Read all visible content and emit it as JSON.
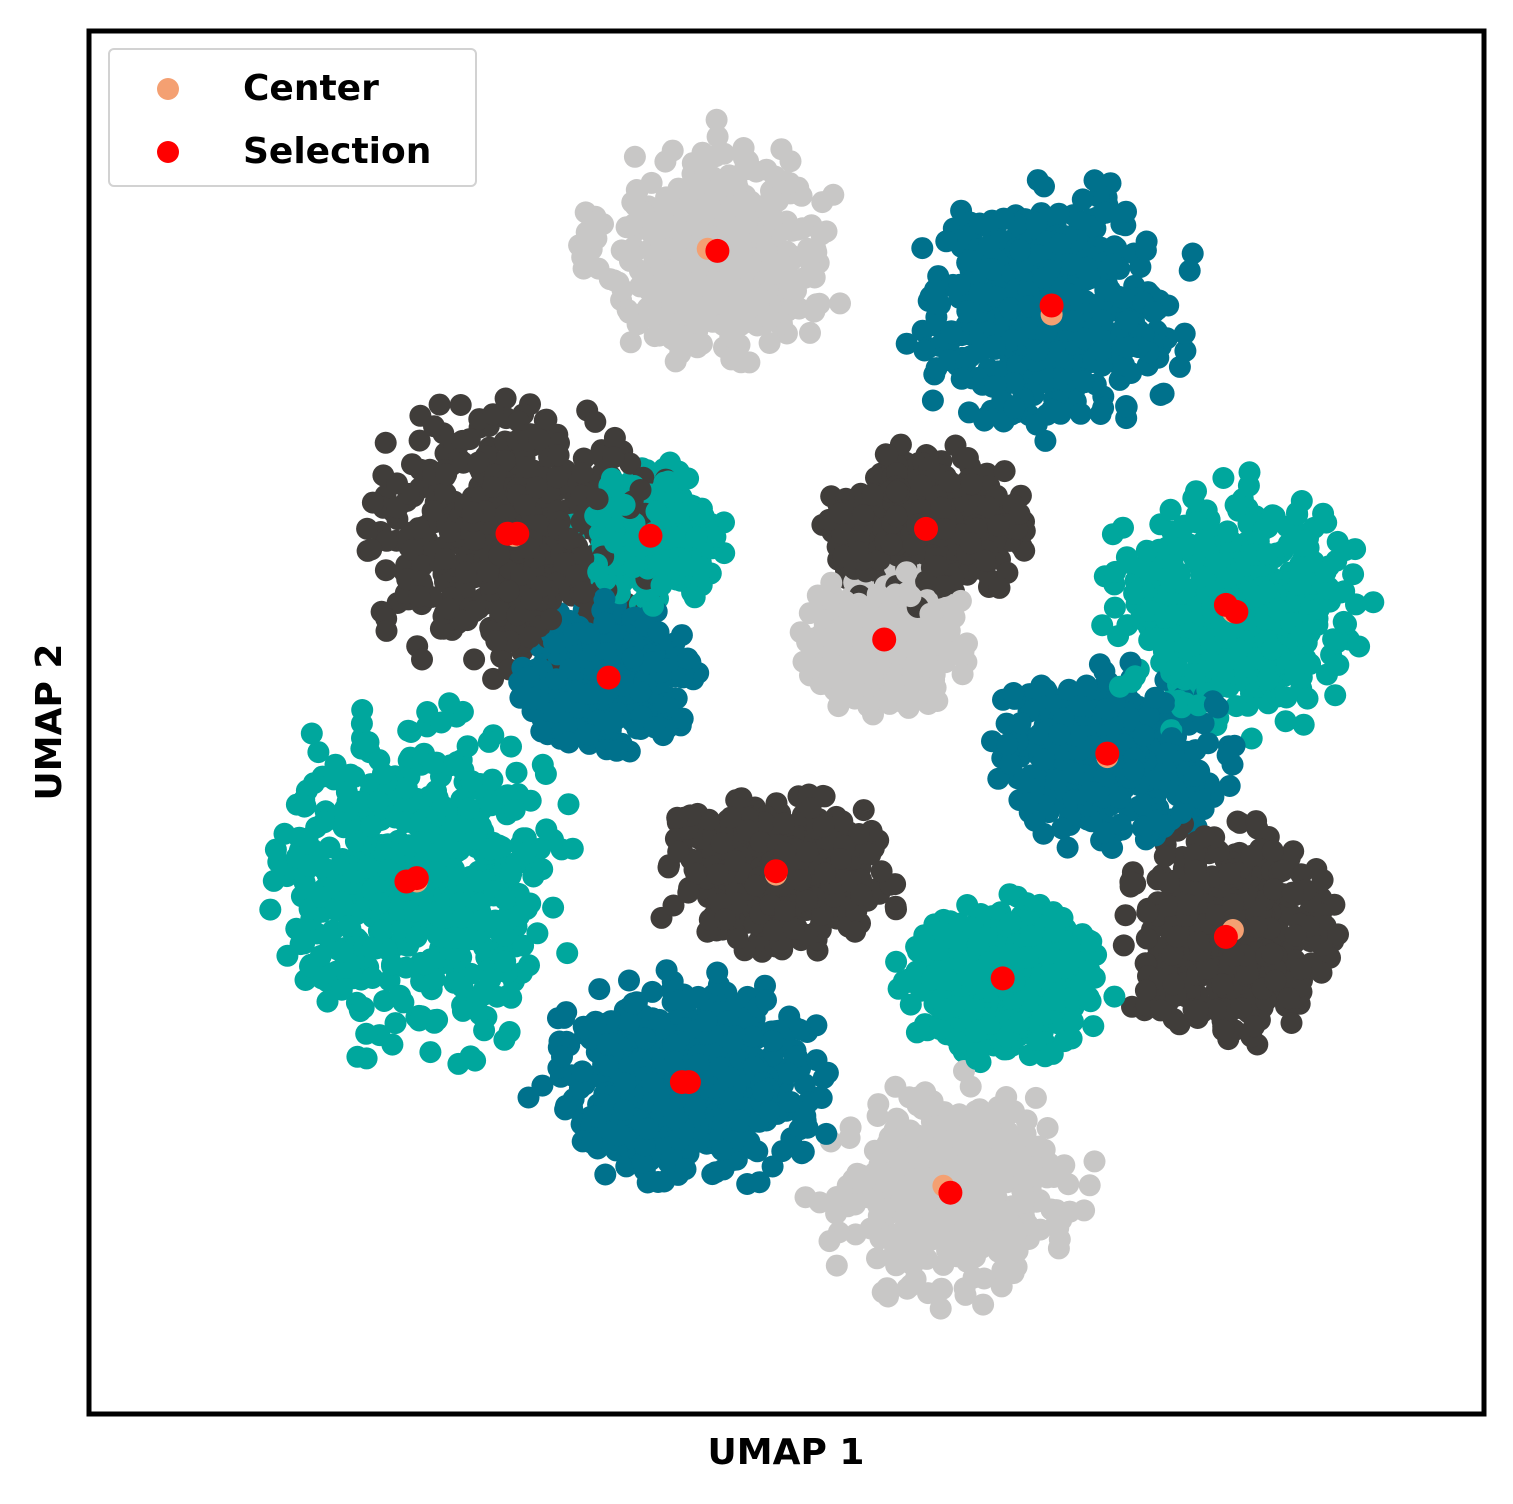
{
  "chart_data": {
    "type": "scatter",
    "title": "",
    "xlabel": "UMAP 1",
    "ylabel": "UMAP 2",
    "xlim": [
      -10,
      10
    ],
    "ylim": [
      -10,
      10
    ],
    "ticks_visible": false,
    "grid": false,
    "legend": {
      "placement": "top-left",
      "entries": [
        {
          "label": "Center",
          "color": "#f4a072"
        },
        {
          "label": "Selection",
          "color": "#ff0000"
        }
      ]
    },
    "colors": {
      "dark": "#403d3a",
      "light_gray": "#c8c7c6",
      "teal": "#00a79d",
      "blue": "#00718c",
      "center": "#f4a072",
      "selection": "#ff0000"
    },
    "clusters": [
      {
        "id": 1,
        "color": "light_gray",
        "center": [
          -0.99,
          6.82
        ],
        "spread": [
          1.6,
          1.5
        ],
        "n": 520
      },
      {
        "id": 2,
        "color": "blue",
        "center": [
          3.8,
          5.95
        ],
        "spread": [
          1.8,
          1.6
        ],
        "n": 480
      },
      {
        "id": 3,
        "color": "dark",
        "center": [
          -3.9,
          2.7
        ],
        "spread": [
          1.9,
          1.7
        ],
        "n": 560
      },
      {
        "id": 4,
        "color": "teal",
        "center": [
          -1.95,
          2.7
        ],
        "spread": [
          0.9,
          0.9
        ],
        "n": 480
      },
      {
        "id": 5,
        "color": "dark",
        "center": [
          2.0,
          2.8
        ],
        "spread": [
          1.2,
          1.0
        ],
        "n": 520
      },
      {
        "id": 6,
        "color": "teal",
        "center": [
          6.4,
          1.7
        ],
        "spread": [
          1.6,
          1.6
        ],
        "n": 480
      },
      {
        "id": 7,
        "color": "light_gray",
        "center": [
          1.4,
          1.2
        ],
        "spread": [
          1.0,
          0.9
        ],
        "n": 520
      },
      {
        "id": 8,
        "color": "blue",
        "center": [
          -2.55,
          0.65
        ],
        "spread": [
          1.1,
          0.9
        ],
        "n": 500
      },
      {
        "id": 9,
        "color": "blue",
        "center": [
          4.6,
          -0.5
        ],
        "spread": [
          1.5,
          1.1
        ],
        "n": 460
      },
      {
        "id": 10,
        "color": "teal",
        "center": [
          -5.3,
          -2.3
        ],
        "spread": [
          1.9,
          2.2
        ],
        "n": 560
      },
      {
        "id": 11,
        "color": "dark",
        "center": [
          -0.15,
          -2.2
        ],
        "spread": [
          1.5,
          1.0
        ],
        "n": 520
      },
      {
        "id": 12,
        "color": "dark",
        "center": [
          6.3,
          -3.1
        ],
        "spread": [
          1.3,
          1.4
        ],
        "n": 480
      },
      {
        "id": 13,
        "color": "teal",
        "center": [
          3.1,
          -3.7
        ],
        "spread": [
          1.3,
          1.0
        ],
        "n": 520
      },
      {
        "id": 14,
        "color": "blue",
        "center": [
          -1.45,
          -5.2
        ],
        "spread": [
          1.8,
          1.3
        ],
        "n": 520
      },
      {
        "id": 15,
        "color": "light_gray",
        "center": [
          2.35,
          -6.8
        ],
        "spread": [
          1.7,
          1.4
        ],
        "n": 480
      }
    ],
    "center_points": [
      [
        -1.13,
        6.85
      ],
      [
        3.8,
        5.9
      ],
      [
        -3.9,
        2.7
      ],
      [
        -1.95,
        2.7
      ],
      [
        2.0,
        2.8
      ],
      [
        6.4,
        1.6
      ],
      [
        1.4,
        1.2
      ],
      [
        -2.55,
        0.65
      ],
      [
        4.6,
        -0.5
      ],
      [
        -5.3,
        -2.3
      ],
      [
        -0.15,
        -2.2
      ],
      [
        6.4,
        -3.0
      ],
      [
        3.1,
        -3.7
      ],
      [
        -1.45,
        -5.2
      ],
      [
        2.25,
        -6.7
      ]
    ],
    "selection_points": [
      [
        -0.99,
        6.82
      ],
      [
        3.8,
        6.03
      ],
      [
        -3.86,
        2.73
      ],
      [
        -4.0,
        2.73
      ],
      [
        -1.95,
        2.7
      ],
      [
        2.0,
        2.8
      ],
      [
        6.3,
        1.7
      ],
      [
        6.45,
        1.6
      ],
      [
        1.4,
        1.2
      ],
      [
        -2.55,
        0.65
      ],
      [
        4.6,
        -0.45
      ],
      [
        -5.3,
        -2.25
      ],
      [
        -5.45,
        -2.3
      ],
      [
        -0.15,
        -2.15
      ],
      [
        6.3,
        -3.1
      ],
      [
        3.1,
        -3.7
      ],
      [
        -1.5,
        -5.2
      ],
      [
        -1.4,
        -5.2
      ],
      [
        2.35,
        -6.8
      ]
    ]
  }
}
